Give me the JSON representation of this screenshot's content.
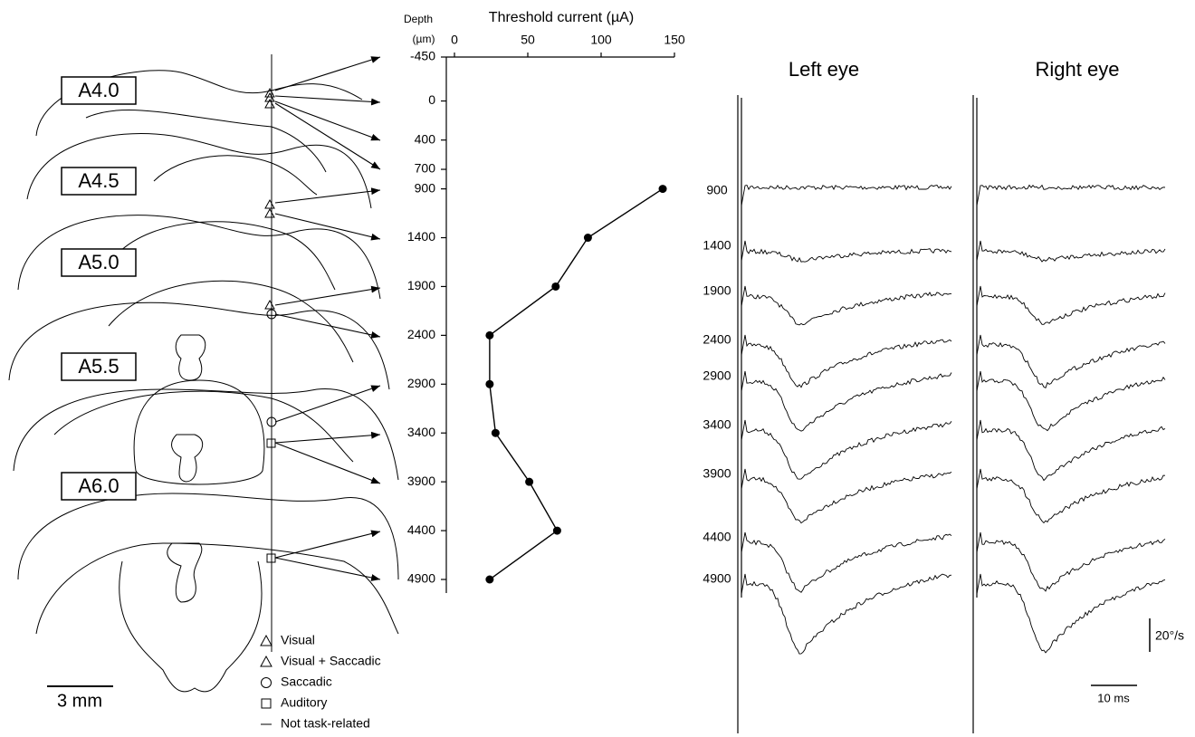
{
  "chart_data": {
    "type": "line",
    "orientation": "horizontal",
    "title": "Threshold current (µA)",
    "y_label": "Depth",
    "y_unit": "(µm)",
    "x": [
      900,
      1400,
      1900,
      2400,
      2900,
      3400,
      3900,
      4400,
      4900
    ],
    "values": [
      142,
      91,
      69,
      24,
      24,
      28,
      51,
      70,
      24
    ],
    "color": "#000000",
    "xlim": [
      0,
      150
    ],
    "xticks": [
      0,
      50,
      100,
      150
    ],
    "ylim": [
      -450,
      4900
    ],
    "yticks": [
      -450,
      0,
      400,
      700,
      900,
      1400,
      1900,
      2400,
      2900,
      3400,
      3900,
      4400,
      4900
    ],
    "y_reversed": true
  },
  "anatomy": {
    "sections": [
      "A4.0",
      "A4.5",
      "A5.0",
      "A5.5",
      "A6.0"
    ],
    "scale_bar": "3 mm"
  },
  "legend": [
    "Visual",
    "Visual + Saccadic",
    "Saccadic",
    "Auditory",
    "Not task-related"
  ],
  "traces": {
    "titles": [
      "Left eye",
      "Right eye"
    ],
    "depths": [
      "900",
      "1400",
      "1900",
      "2400",
      "2900",
      "3400",
      "3900",
      "4400",
      "4900"
    ],
    "velocity_scale": "20°/s",
    "time_scale": "10 ms"
  }
}
